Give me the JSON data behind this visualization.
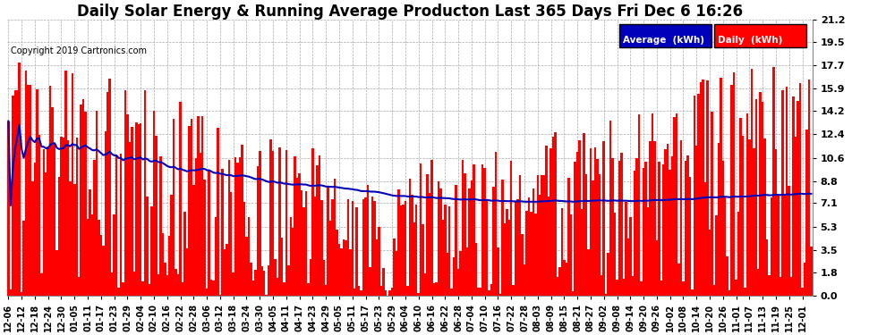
{
  "title": "Daily Solar Energy & Running Average Producton Last 365 Days Fri Dec 6 16:26",
  "copyright_text": "Copyright 2019 Cartronics.com",
  "yticks": [
    0.0,
    1.8,
    3.5,
    5.3,
    7.1,
    8.8,
    10.6,
    12.4,
    14.2,
    15.9,
    17.7,
    19.5,
    21.2
  ],
  "ylim": [
    0.0,
    21.2
  ],
  "bar_color": "#FF0000",
  "avg_line_color": "#0000BB",
  "background_color": "#FFFFFF",
  "grid_color": "#AAAAAA",
  "legend_avg_bg": "#0000BB",
  "legend_daily_bg": "#FF0000",
  "legend_text_color": "#FFFFFF",
  "title_fontsize": 12,
  "tick_fontsize": 8,
  "figsize": [
    9.9,
    3.75
  ],
  "dpi": 100,
  "n_days": 365,
  "x_tick_labels": [
    "12-06",
    "12-12",
    "12-18",
    "12-24",
    "12-30",
    "01-05",
    "01-11",
    "01-17",
    "01-23",
    "01-29",
    "02-04",
    "02-10",
    "02-16",
    "02-22",
    "02-28",
    "03-06",
    "03-12",
    "03-18",
    "03-24",
    "03-30",
    "04-05",
    "04-11",
    "04-17",
    "04-23",
    "04-29",
    "05-05",
    "05-11",
    "05-17",
    "05-23",
    "05-29",
    "06-04",
    "06-10",
    "06-16",
    "06-22",
    "06-28",
    "07-04",
    "07-10",
    "07-16",
    "07-22",
    "07-28",
    "08-03",
    "08-09",
    "08-15",
    "08-21",
    "08-27",
    "09-02",
    "09-08",
    "09-14",
    "09-20",
    "09-26",
    "10-02",
    "10-08",
    "10-14",
    "10-20",
    "10-26",
    "11-01",
    "11-07",
    "11-13",
    "11-19",
    "11-25",
    "12-01"
  ],
  "x_tick_positions": [
    0,
    6,
    12,
    18,
    24,
    30,
    36,
    42,
    48,
    54,
    60,
    66,
    72,
    78,
    84,
    90,
    96,
    102,
    108,
    114,
    120,
    126,
    132,
    138,
    144,
    150,
    156,
    162,
    168,
    174,
    180,
    186,
    192,
    198,
    204,
    210,
    216,
    222,
    228,
    234,
    240,
    246,
    252,
    258,
    264,
    270,
    276,
    282,
    288,
    294,
    300,
    306,
    312,
    318,
    324,
    330,
    336,
    342,
    348,
    354,
    360
  ]
}
